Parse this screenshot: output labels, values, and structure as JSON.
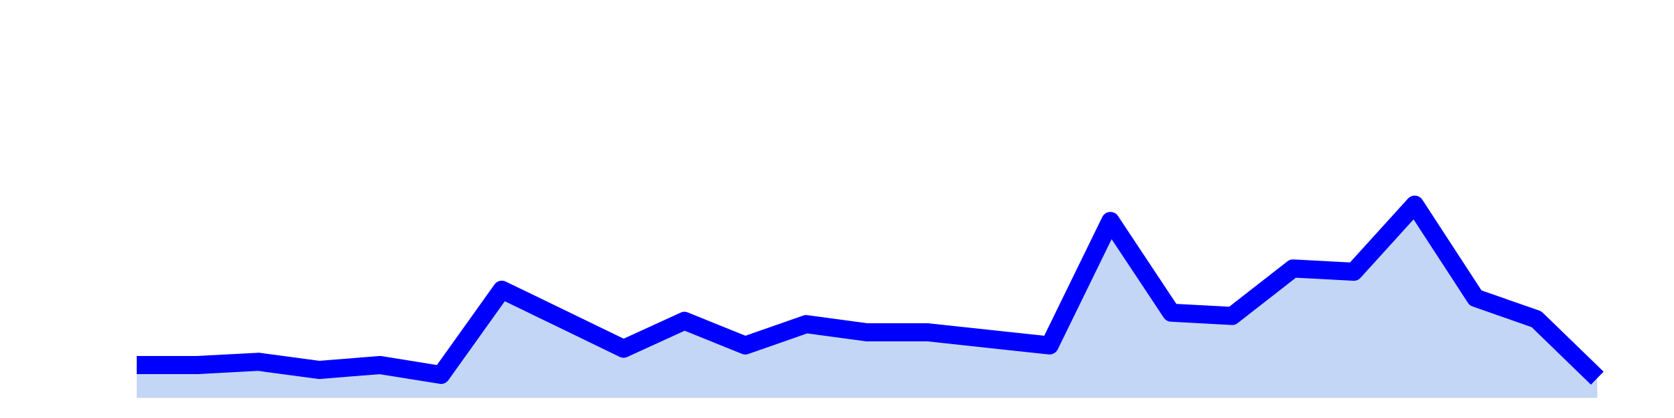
{
  "chart_data": {
    "type": "area",
    "x": [
      0,
      1,
      2,
      3,
      4,
      5,
      6,
      7,
      8,
      9,
      10,
      11,
      12,
      13,
      14,
      15,
      16,
      17,
      18,
      19,
      20,
      21,
      22,
      23,
      24
    ],
    "series": [
      {
        "values": [
          2.0,
          2.0,
          2.2,
          1.7,
          2.0,
          1.4,
          6.6,
          4.8,
          3.0,
          4.7,
          3.2,
          4.5,
          4.0,
          4.0,
          3.6,
          3.2,
          10.8,
          5.2,
          5.0,
          7.9,
          7.7,
          11.8,
          6.1,
          4.8,
          1.2
        ],
        "line_color": "#0000ff",
        "fill_color": "#c4d6f6"
      }
    ],
    "ylim": [
      0,
      24
    ],
    "grid": false,
    "axes_visible": false,
    "legend": "none"
  }
}
